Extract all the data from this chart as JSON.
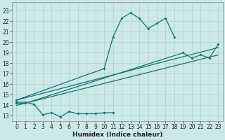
{
  "title": "",
  "xlabel": "Humidex (Indice chaleur)",
  "ylabel": "",
  "bg_color": "#cce8e8",
  "grid_color": "#a8d4d4",
  "line_color": "#1a7070",
  "x_ticks": [
    0,
    1,
    2,
    3,
    4,
    5,
    6,
    7,
    8,
    9,
    10,
    11,
    12,
    13,
    14,
    15,
    16,
    17,
    18,
    19,
    20,
    21,
    22,
    23
  ],
  "y_ticks": [
    13,
    14,
    15,
    16,
    17,
    18,
    19,
    20,
    21,
    22,
    23
  ],
  "xlim": [
    -0.5,
    23.5
  ],
  "ylim": [
    12.5,
    23.8
  ],
  "line1_x": [
    0,
    1,
    2,
    3,
    4,
    5,
    6,
    7,
    8,
    9,
    10,
    11
  ],
  "line1_y": [
    14.3,
    14.3,
    14.1,
    13.1,
    13.3,
    12.9,
    13.4,
    13.2,
    13.2,
    13.2,
    13.3,
    13.3
  ],
  "line2_x": [
    0,
    10,
    11,
    12,
    13,
    14,
    15,
    16,
    17,
    18
  ],
  "line2_y": [
    14.5,
    17.5,
    20.5,
    22.3,
    22.8,
    22.3,
    21.3,
    21.8,
    22.3,
    20.5
  ],
  "line3_x": [
    0,
    1,
    19,
    20,
    21,
    22,
    23
  ],
  "line3_y": [
    14.2,
    14.2,
    19.0,
    18.5,
    18.8,
    18.5,
    19.8
  ],
  "line4_x": [
    0,
    23
  ],
  "line4_y": [
    14.5,
    19.5
  ],
  "line5_x": [
    0,
    23
  ],
  "line5_y": [
    14.0,
    18.8
  ],
  "tick_fontsize": 5.5,
  "xlabel_fontsize": 6.5
}
